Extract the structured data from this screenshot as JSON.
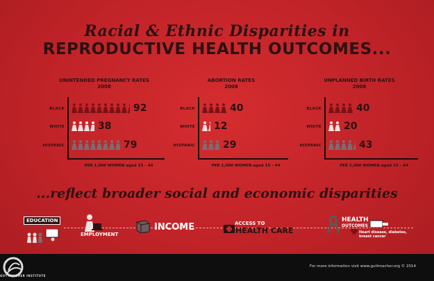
{
  "title": {
    "line1": "Racial & Ethnic Disparities in",
    "line2": "REPRODUCTIVE HEALTH OUTCOMES..."
  },
  "subtitle": "...reflect broader social and economic disparities",
  "row_labels": [
    "BLACK",
    "WHITE",
    "HISPANIC"
  ],
  "footnote": "PER 1,000 WOMEN aged 15 – 44",
  "charts": [
    {
      "title": "UNINTENDED PREGNANCY RATES",
      "year": "2008",
      "values": [
        "92",
        "38",
        "79"
      ]
    },
    {
      "title": "ABORTION RATES",
      "year": "2008",
      "values": [
        "40",
        "12",
        "29"
      ]
    },
    {
      "title": "UNPLANNED BIRTH RATES",
      "year": "2008",
      "values": [
        "40",
        "20",
        "43"
      ]
    }
  ],
  "chart_data": [
    {
      "type": "bar",
      "title": "UNINTENDED PREGNANCY RATES 2008",
      "categories": [
        "BLACK",
        "WHITE",
        "HISPANIC"
      ],
      "values": [
        92,
        38,
        79
      ],
      "xlabel": "PER 1,000 WOMEN aged 15 – 44"
    },
    {
      "type": "bar",
      "title": "ABORTION RATES 2008",
      "categories": [
        "BLACK",
        "WHITE",
        "HISPANIC"
      ],
      "values": [
        40,
        12,
        29
      ],
      "xlabel": "PER 1,000 WOMEN aged 15 – 44"
    },
    {
      "type": "bar",
      "title": "UNPLANNED BIRTH RATES 2008",
      "categories": [
        "BLACK",
        "WHITE",
        "HISPANIC"
      ],
      "values": [
        40,
        20,
        43
      ],
      "xlabel": "PER 1,000 WOMEN aged 15 – 44"
    }
  ],
  "colors": {
    "background": "#c3262b",
    "black_figure": "#7a1216",
    "white_figure": "#f2e3e3",
    "hispanic_figure": "#7a6d72",
    "dark_text": "#2b1212"
  },
  "icons": {
    "education": "EDUCATION",
    "employment": "EMPLOYMENT",
    "income": "INCOME",
    "access_line1": "ACCESS TO",
    "access_line2": "HEALTH CARE",
    "health_line1": "HEALTH",
    "health_line2": "OUTCOMES",
    "health_detail": "Heart disease, diabetes, breast cancer"
  },
  "footer": {
    "more_info": "For more information visit www.guttmacher.org © 2014",
    "logo_text": "GUTTMACHER INSTITUTE"
  }
}
